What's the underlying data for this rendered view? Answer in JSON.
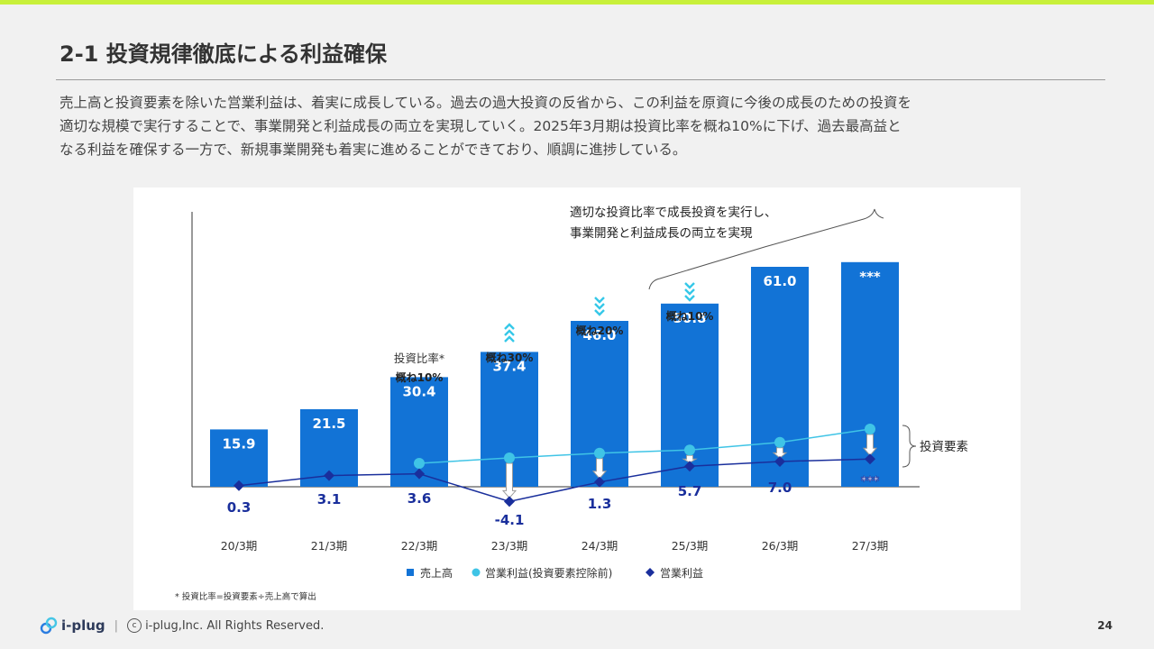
{
  "slide": {
    "title": "2-1 投資規律徹底による利益確保",
    "body_lines": [
      "売上高と投資要素を除いた営業利益は、着実に成長している。過去の過大投資の反省から、この利益を原資に今後の成長のための投資を",
      "適切な規模で実行することで、事業開発と利益成長の両立を実現していく。2025年3月期は投資比率を概ね10%に下げ、過去最高益と",
      "なる利益を確保する一方で、新規事業開発も着実に進めることができており、順調に進捗している。"
    ],
    "page_number": "24"
  },
  "footer": {
    "brand": "i-plug",
    "separator": "|",
    "copyright_symbol": "c",
    "copyright": "i-plug,Inc. All Rights Reserved."
  },
  "colors": {
    "bar": "#1273d6",
    "line_adjusted": "#3fc4e6",
    "line_profit": "#1a2f9c",
    "accent_chevron": "#36c8e8",
    "topbar": "#c8f03a"
  },
  "chart_data": {
    "type": "bar",
    "categories": [
      "20/3期",
      "21/3期",
      "22/3期",
      "23/3期",
      "24/3期",
      "25/3期",
      "26/3期",
      "27/3期"
    ],
    "series": [
      {
        "name": "売上高",
        "type": "bar",
        "values": [
          15.9,
          21.5,
          30.4,
          37.4,
          46.0,
          50.8,
          61.0,
          null
        ],
        "labels": [
          "15.9",
          "21.5",
          "30.4",
          "37.4",
          "46.0",
          "50.8",
          "61.0",
          "***"
        ]
      },
      {
        "name": "営業利益(投資要素控除前)",
        "type": "line",
        "values": [
          null,
          null,
          6.5,
          8.0,
          9.3,
          10.2,
          12.3,
          16.0
        ]
      },
      {
        "name": "営業利益",
        "type": "line",
        "values": [
          0.3,
          3.1,
          3.6,
          -4.1,
          1.3,
          5.7,
          7.0,
          7.7
        ],
        "labels": [
          "0.3",
          "3.1",
          "3.6",
          "-4.1",
          "1.3",
          "5.7",
          "7.0",
          "***"
        ]
      }
    ],
    "annotations": {
      "ratio_title": "投資比率*",
      "ratios": [
        {
          "category": "22/3期",
          "text": "概ね10%",
          "direction": "none"
        },
        {
          "category": "23/3期",
          "text": "概ね30%",
          "direction": "up"
        },
        {
          "category": "24/3期",
          "text": "概ね20%",
          "direction": "down"
        },
        {
          "category": "25/3期",
          "text": "概ね10%",
          "direction": "down"
        }
      ],
      "callout_line1": "適切な投資比率で成長投資を実行し、",
      "callout_line2": "事業開発と利益成長の両立を実現",
      "bracket_label": "投資要素",
      "footnote": "* 投資比率=投資要素÷売上高で算出"
    },
    "ylim": [
      -6,
      68
    ],
    "legend_position": "bottom",
    "xlabel": "",
    "ylabel": ""
  }
}
